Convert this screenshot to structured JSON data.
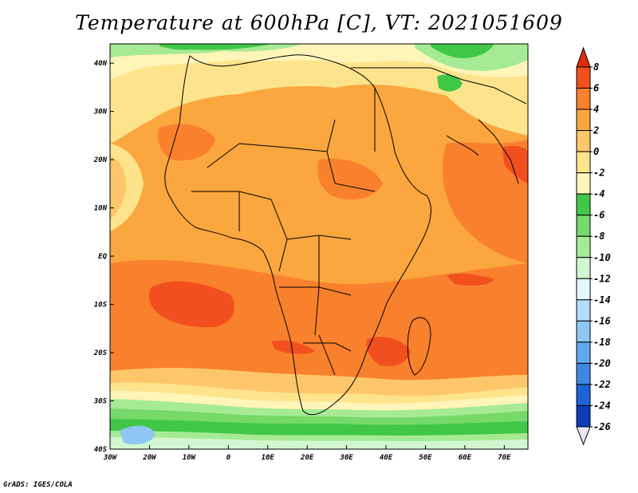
{
  "title": "Temperature at 600hPa [C], VT: 2021051609",
  "credit": "GrADS: IGES/COLA",
  "map": {
    "lon_range": [
      -30,
      76
    ],
    "lat_range": [
      -40,
      44
    ],
    "lon_ticks": [
      {
        "value": -30,
        "label": "30W"
      },
      {
        "value": -20,
        "label": "20W"
      },
      {
        "value": -10,
        "label": "10W"
      },
      {
        "value": 0,
        "label": "0"
      },
      {
        "value": 10,
        "label": "10E"
      },
      {
        "value": 20,
        "label": "20E"
      },
      {
        "value": 30,
        "label": "30E"
      },
      {
        "value": 40,
        "label": "40E"
      },
      {
        "value": 50,
        "label": "50E"
      },
      {
        "value": 60,
        "label": "60E"
      },
      {
        "value": 70,
        "label": "70E"
      }
    ],
    "lat_ticks": [
      {
        "value": 40,
        "label": "40N"
      },
      {
        "value": 30,
        "label": "30N"
      },
      {
        "value": 20,
        "label": "20N"
      },
      {
        "value": 10,
        "label": "10N"
      },
      {
        "value": 0,
        "label": "EQ"
      },
      {
        "value": -10,
        "label": "10S"
      },
      {
        "value": -20,
        "label": "20S"
      },
      {
        "value": -30,
        "label": "30S"
      },
      {
        "value": -40,
        "label": "40S"
      }
    ]
  },
  "colorbar": {
    "labels": [
      "8",
      "6",
      "4",
      "2",
      "0",
      "-2",
      "-4",
      "-6",
      "-8",
      "-10",
      "-12",
      "-14",
      "-16",
      "-18",
      "-20",
      "-22",
      "-24",
      "-26"
    ],
    "colors": [
      "#e02b10",
      "#f24f1e",
      "#f9802d",
      "#fba63e",
      "#fec66a",
      "#fde48c",
      "#fff5b8",
      "#41c747",
      "#76d96a",
      "#a6eb94",
      "#d2f7d0",
      "#e4f6fa",
      "#b4dcf8",
      "#8ec6f4",
      "#62a8ee",
      "#3e88e4",
      "#1f62d6",
      "#0d3cb5",
      "#071e78"
    ]
  }
}
